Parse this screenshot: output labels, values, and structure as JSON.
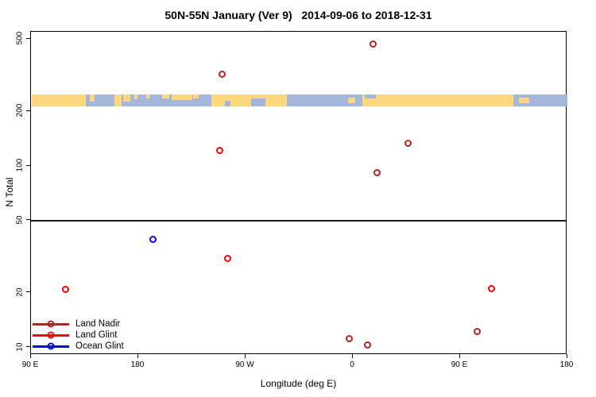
{
  "chart_data": {
    "type": "scatter",
    "title": "50N-55N January (Ver 9)   2014-09-06 to 2018-12-31",
    "xlabel": "Longitude (deg E)",
    "ylabel": "N Total",
    "y_scale": "log",
    "xlim": [
      90,
      540
    ],
    "ylim": [
      9.1,
      550
    ],
    "x_ticks": [
      {
        "lon": 90,
        "label": "90 E"
      },
      {
        "lon": 180,
        "label": "180"
      },
      {
        "lon": 270,
        "label": "90 W"
      },
      {
        "lon": 360,
        "label": "0"
      },
      {
        "lon": 450,
        "label": "90 E"
      },
      {
        "lon": 540,
        "label": "180"
      }
    ],
    "y_ticks": [
      10,
      20,
      50,
      100,
      200,
      500
    ],
    "ref_line_n": 50,
    "grid": false,
    "legend_position": "bottom-left",
    "series": [
      {
        "name": "Land Nadir",
        "color": "#B22222",
        "marker": "open-circle",
        "points": [
          {
            "lon": 250,
            "n": 320
          },
          {
            "lon": 377,
            "n": 470
          },
          {
            "lon": 406,
            "n": 134
          },
          {
            "lon": 380,
            "n": 92
          },
          {
            "lon": 464,
            "n": 12.3
          },
          {
            "lon": 357,
            "n": 11.2
          },
          {
            "lon": 372,
            "n": 10.3
          }
        ]
      },
      {
        "name": "Land Glint",
        "color": "#FF0000",
        "marker": "open-circle",
        "points": [
          {
            "lon": 248,
            "n": 122
          },
          {
            "lon": 255,
            "n": 31
          },
          {
            "lon": 119,
            "n": 21
          },
          {
            "lon": 476,
            "n": 21.2
          }
        ]
      },
      {
        "name": "Ocean Glint",
        "color": "#0000FF",
        "marker": "open-circle",
        "points": [
          {
            "lon": 192,
            "n": 39.6
          }
        ]
      }
    ],
    "map_band": {
      "description": "land/ocean strip for 50N-55N latitude belt",
      "n_top": 248,
      "n_bottom": 213,
      "lon_start": 90.7,
      "lon_end": 540,
      "land_color": "#FFD77E",
      "ocean_color": "#A3B7DB",
      "land_segments": [
        [
          90.7,
          136,
          0,
          1
        ],
        [
          139.3,
          143.3,
          0,
          0.6
        ],
        [
          160,
          166,
          0,
          1
        ],
        [
          167.3,
          173.3,
          0,
          0.6
        ],
        [
          176.7,
          179.3,
          0,
          0.4
        ],
        [
          186.7,
          189.3,
          0,
          0.35
        ],
        [
          200,
          206,
          0,
          0.35
        ],
        [
          208,
          225,
          0,
          0.45
        ],
        [
          226,
          230.7,
          0,
          0.3
        ],
        [
          241.3,
          304.7,
          0,
          1
        ],
        [
          356,
          362,
          0.25,
          0.5
        ],
        [
          368,
          494.7,
          0,
          1
        ],
        [
          499.3,
          508,
          0.25,
          0.5
        ]
      ],
      "ocean_patches": [
        [
          252.7,
          257.3,
          0.5,
          0.5
        ],
        [
          274.7,
          286.7,
          0.35,
          0.65
        ],
        [
          370,
          379.3,
          0,
          0.3
        ]
      ]
    }
  }
}
